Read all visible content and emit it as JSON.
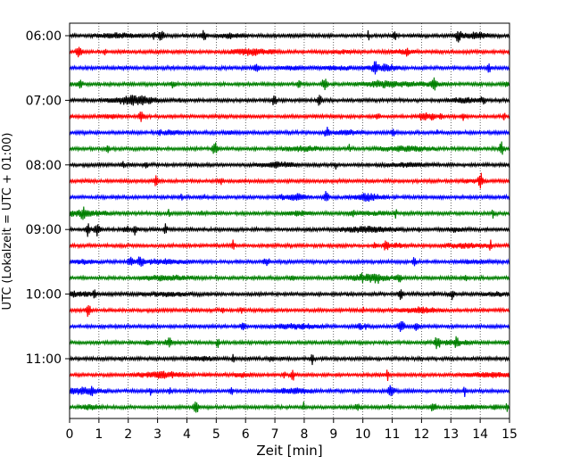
{
  "chart_data": {
    "type": "line",
    "xlabel": "Zeit  [min]",
    "ylabel": "UTC (Lokalzeit = UTC + 01:00)",
    "xlim": [
      0,
      15
    ],
    "x_ticks": [
      0,
      1,
      2,
      3,
      4,
      5,
      6,
      7,
      8,
      9,
      10,
      11,
      12,
      13,
      14,
      15
    ],
    "y_ticks": [
      "06:00",
      "07:00",
      "08:00",
      "09:00",
      "10:00",
      "11:00"
    ],
    "grid": "vertical dotted at each minute",
    "trace_interval_minutes": 15,
    "color_cycle": [
      "#000000",
      "#ff0000",
      "#0000ff",
      "#008000"
    ],
    "series": [
      {
        "start": "06:00",
        "color": "#000000"
      },
      {
        "start": "06:15",
        "color": "#ff0000"
      },
      {
        "start": "06:30",
        "color": "#0000ff"
      },
      {
        "start": "06:45",
        "color": "#008000"
      },
      {
        "start": "07:00",
        "color": "#000000"
      },
      {
        "start": "07:15",
        "color": "#ff0000"
      },
      {
        "start": "07:30",
        "color": "#0000ff"
      },
      {
        "start": "07:45",
        "color": "#008000"
      },
      {
        "start": "08:00",
        "color": "#000000"
      },
      {
        "start": "08:15",
        "color": "#ff0000"
      },
      {
        "start": "08:30",
        "color": "#0000ff"
      },
      {
        "start": "08:45",
        "color": "#008000"
      },
      {
        "start": "09:00",
        "color": "#000000"
      },
      {
        "start": "09:15",
        "color": "#ff0000"
      },
      {
        "start": "09:30",
        "color": "#0000ff"
      },
      {
        "start": "09:45",
        "color": "#008000"
      },
      {
        "start": "10:00",
        "color": "#000000"
      },
      {
        "start": "10:15",
        "color": "#ff0000"
      },
      {
        "start": "10:30",
        "color": "#0000ff"
      },
      {
        "start": "10:45",
        "color": "#008000"
      },
      {
        "start": "11:00",
        "color": "#000000"
      },
      {
        "start": "11:15",
        "color": "#ff0000"
      },
      {
        "start": "11:30",
        "color": "#0000ff"
      },
      {
        "start": "11:45",
        "color": "#008000"
      }
    ]
  }
}
